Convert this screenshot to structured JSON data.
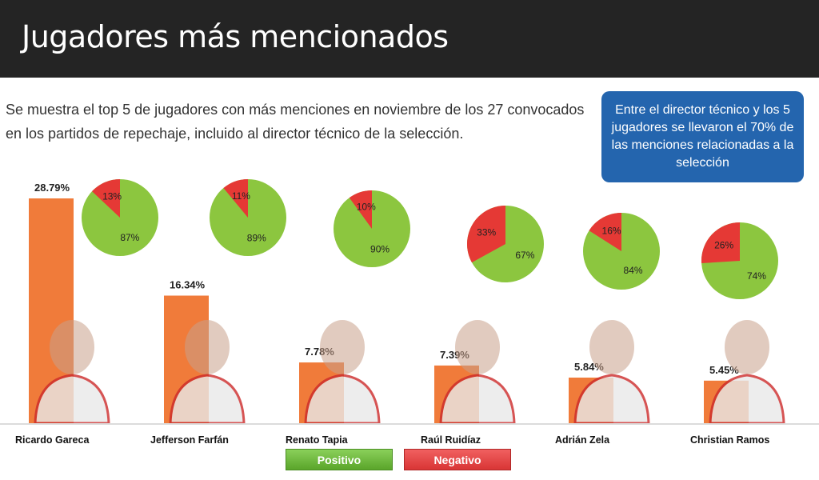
{
  "header": {
    "title": "Jugadores más mencionados"
  },
  "description": "Se muestra el top 5 de jugadores con más menciones en noviembre de los 27 convocados en los partidos de repechaje, incluido al director técnico de la selección.",
  "callout": "Entre el director técnico y los 5 jugadores se llevaron el 70% de las menciones relacionadas a la selección",
  "legend": {
    "positive": "Positivo",
    "negative": "Negativo"
  },
  "colors": {
    "bar": "#f07b3a",
    "positive": "#8cc63f",
    "negative": "#e53935",
    "callout": "#2465ae",
    "header": "#242424"
  },
  "chart_data": {
    "type": "bar",
    "categories": [
      "Ricardo Gareca",
      "Jefferson Farfán",
      "Renato Tapia",
      "Raúl Ruidíaz",
      "Adrián Zela",
      "Christian Ramos"
    ],
    "values": [
      28.79,
      16.34,
      7.78,
      7.39,
      5.84,
      5.45
    ],
    "value_labels": [
      "28.79%",
      "16.34%",
      "7.78%",
      "7.39%",
      "5.84%",
      "5.45%"
    ],
    "unit": "%",
    "pies": [
      {
        "positive": 87,
        "negative": 13
      },
      {
        "positive": 89,
        "negative": 11
      },
      {
        "positive": 90,
        "negative": 10
      },
      {
        "positive": 67,
        "negative": 33
      },
      {
        "positive": 84,
        "negative": 16
      },
      {
        "positive": 74,
        "negative": 26
      }
    ],
    "series": [
      {
        "name": "Positivo"
      },
      {
        "name": "Negativo"
      }
    ]
  }
}
